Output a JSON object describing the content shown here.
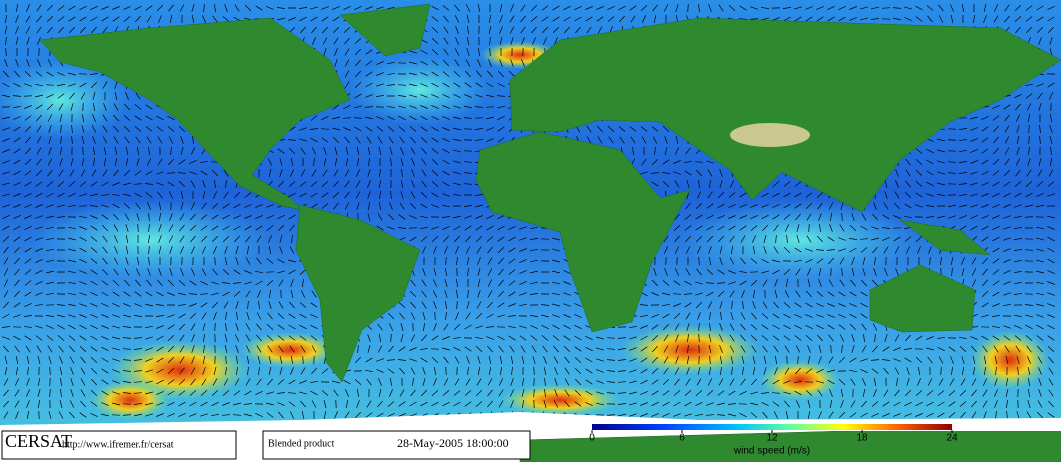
{
  "credit": {
    "name": "CERSAT",
    "url": "http://www.ifremer.fr/cersat"
  },
  "product": {
    "name": "Blended product",
    "date": "28-May-2005 18:00:00"
  },
  "colorbar": {
    "label": "wind speed (m/s)",
    "range": [
      0,
      24
    ],
    "ticks": [
      0,
      6,
      12,
      18,
      24
    ]
  }
}
